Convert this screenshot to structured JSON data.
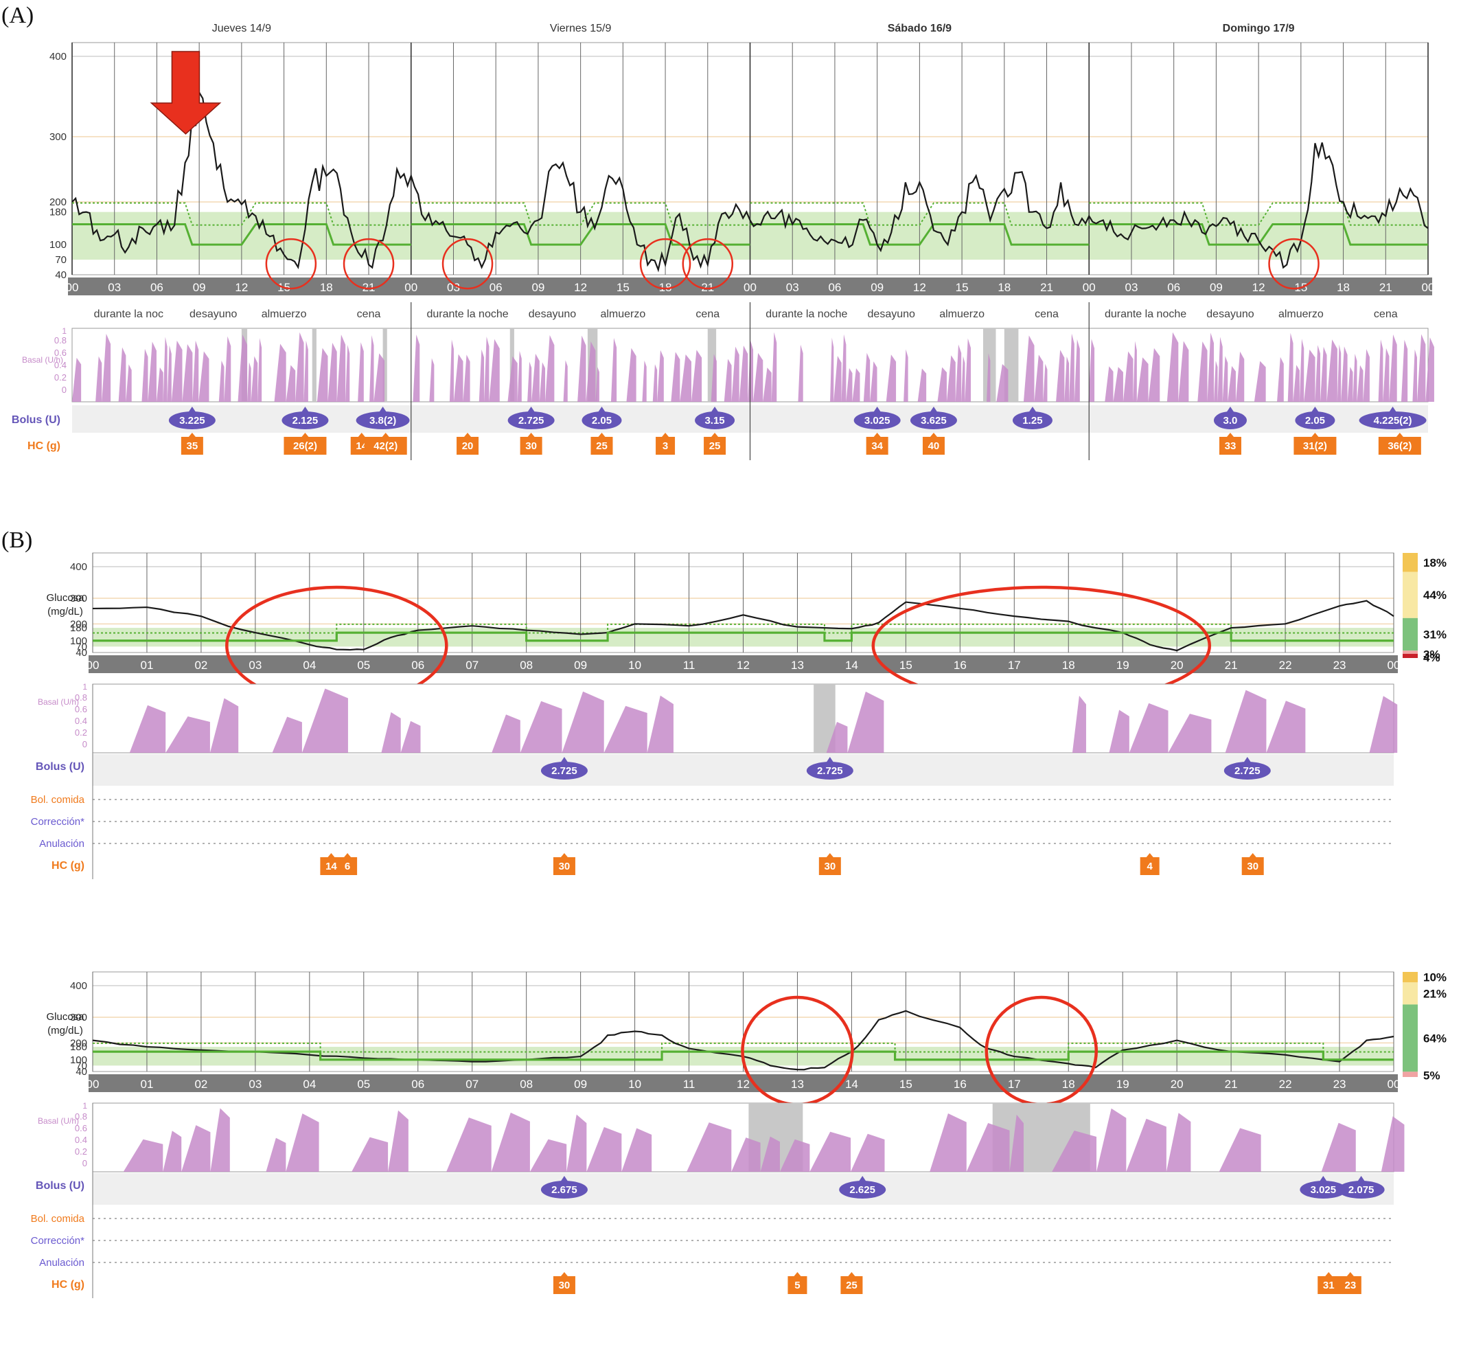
{
  "panel_labels": {
    "a": "(A)",
    "b": "(B)"
  },
  "colors": {
    "glucose": "#1a1a1a",
    "target_band": "#d6ecc6",
    "basal_line": "#55b033",
    "basal_fill": "#c68bc9",
    "bolus": "#6455b8",
    "carbs": "#f07a1c",
    "annotation": "#e8301e",
    "axis_bar": "#7b7b7b",
    "gap": "#c8c8c8",
    "pct_high": "#f3c553",
    "pct_elev": "#f8e8a4",
    "pct_target": "#7cc27c",
    "pct_low": "#f0a3a3",
    "pct_vlow": "#c8202a"
  },
  "chart_data": [
    {
      "type": "line",
      "id": "A",
      "days": [
        "Jueves 14/9",
        "Viernes 15/9",
        "Sábado 16/9",
        "Domingo 17/9"
      ],
      "x_tick_labels": [
        "00",
        "03",
        "06",
        "09",
        "12",
        "15",
        "18",
        "21"
      ],
      "y_ticks": [
        40,
        70,
        100,
        180,
        200,
        300,
        400
      ],
      "ylim": [
        40,
        400
      ],
      "target_range": [
        70,
        180
      ],
      "periods": [
        "durante la noc",
        "desayuno",
        "almuerzo",
        "cena",
        "durante la noche",
        "desayuno",
        "almuerzo",
        "cena",
        "durante la noche",
        "desayuno",
        "almuerzo",
        "cena",
        "durante la noche",
        "desayuno",
        "almuerzo",
        "cena"
      ],
      "period_hours": [
        0,
        8,
        12,
        18,
        0,
        8,
        12,
        18,
        0,
        8,
        12,
        18,
        0,
        8,
        12,
        18
      ],
      "row_labels": {
        "basal": "Basal (U/h)",
        "bolus": "Bolus (U)",
        "carbs": "HC (g)"
      },
      "basal_ticks": [
        "1",
        "0.8",
        "0.6",
        "0.4",
        "0.2",
        "0"
      ],
      "glucose": {
        "x_hours": [
          0,
          1,
          2,
          3,
          4,
          5,
          6,
          7,
          8,
          9,
          10,
          11,
          12,
          13,
          14,
          15,
          16,
          17,
          18,
          19,
          20,
          21,
          22,
          23,
          24,
          25,
          26,
          27,
          28,
          29,
          30,
          31,
          32,
          33,
          34,
          35,
          36,
          37,
          38,
          39,
          40,
          41,
          42,
          43,
          44,
          45,
          46,
          47,
          48,
          49,
          50,
          51,
          52,
          53,
          54,
          55,
          56,
          57,
          58,
          59,
          60,
          61,
          62,
          63,
          64,
          65,
          66,
          67,
          68,
          69,
          70,
          71,
          72,
          73,
          74,
          75,
          76,
          77,
          78,
          79,
          80,
          81,
          82,
          83,
          84,
          85,
          86,
          87,
          88,
          89,
          90,
          91,
          92,
          93,
          94,
          95,
          96
        ],
        "values": [
          200,
          180,
          110,
          125,
          95,
          140,
          150,
          135,
          260,
          355,
          290,
          200,
          195,
          170,
          120,
          80,
          55,
          230,
          240,
          220,
          100,
          60,
          110,
          250,
          240,
          160,
          150,
          120,
          100,
          55,
          130,
          145,
          130,
          160,
          255,
          240,
          180,
          140,
          240,
          220,
          100,
          70,
          60,
          175,
          70,
          60,
          175,
          195,
          160,
          170,
          175,
          150,
          140,
          120,
          110,
          95,
          160,
          100,
          130,
          230,
          230,
          135,
          100,
          180,
          240,
          160,
          220,
          245,
          180,
          140,
          230,
          150,
          170,
          160,
          120,
          130,
          140,
          150,
          160,
          160,
          130,
          145,
          150,
          120,
          110,
          90,
          60,
          110,
          290,
          270,
          200,
          170,
          170,
          170,
          220,
          210,
          140
        ]
      },
      "basal_target": {
        "x_hours": [
          0,
          8,
          8.5,
          12,
          13,
          18,
          18.5,
          24
        ],
        "values": [
          150,
          150,
          100,
          100,
          150,
          150,
          100,
          100
        ]
      },
      "hypo_circles_hours": [
        15.5,
        21,
        28,
        42,
        45,
        86.5
      ],
      "arrow_hour": 9.5,
      "bolus": [
        {
          "hour": 8.5,
          "label": "3.225"
        },
        {
          "hour": 16.5,
          "label": "2.125"
        },
        {
          "hour": 22,
          "label": "3.8(2)"
        },
        {
          "hour": 32.5,
          "label": "2.725"
        },
        {
          "hour": 37.5,
          "label": "2.05"
        },
        {
          "hour": 45.5,
          "label": "3.15"
        },
        {
          "hour": 57,
          "label": "3.025"
        },
        {
          "hour": 61,
          "label": "3.625"
        },
        {
          "hour": 68,
          "label": "1.25"
        },
        {
          "hour": 82,
          "label": "3.0"
        },
        {
          "hour": 88,
          "label": "2.05"
        },
        {
          "hour": 93.5,
          "label": "4.225(2)"
        }
      ],
      "carbs": [
        {
          "hour": 8.5,
          "label": "35"
        },
        {
          "hour": 16.5,
          "label": "26(2)"
        },
        {
          "hour": 20.5,
          "label": "14"
        },
        {
          "hour": 22.2,
          "label": "42(2)"
        },
        {
          "hour": 28,
          "label": "20"
        },
        {
          "hour": 32.5,
          "label": "30"
        },
        {
          "hour": 37.5,
          "label": "25"
        },
        {
          "hour": 42,
          "label": "3"
        },
        {
          "hour": 45.5,
          "label": "25"
        },
        {
          "hour": 57,
          "label": "34"
        },
        {
          "hour": 61,
          "label": "40"
        },
        {
          "hour": 82,
          "label": "33"
        },
        {
          "hour": 88,
          "label": "31(2)"
        },
        {
          "hour": 94,
          "label": "36(2)"
        }
      ]
    },
    {
      "type": "line",
      "id": "B1",
      "ylabel": "Glucosa\n(mg/dL)",
      "y_ticks": [
        40,
        70,
        100,
        180,
        200,
        300,
        400
      ],
      "ylim": [
        40,
        400
      ],
      "target_range": [
        70,
        180
      ],
      "x_tick_labels": [
        "00",
        "01",
        "02",
        "03",
        "04",
        "05",
        "06",
        "07",
        "08",
        "09",
        "10",
        "11",
        "12",
        "13",
        "14",
        "15",
        "16",
        "17",
        "18",
        "19",
        "20",
        "21",
        "22",
        "23",
        "00"
      ],
      "glucose": {
        "x_hours": [
          0,
          1,
          2,
          3,
          4,
          4.5,
          5,
          5.5,
          6,
          7,
          8,
          9,
          9.5,
          10,
          11,
          12,
          13,
          14,
          14.5,
          15,
          16,
          17,
          18,
          19,
          19.5,
          20,
          21,
          22,
          23,
          23.5,
          24
        ],
        "values": [
          260,
          265,
          230,
          150,
          80,
          55,
          55,
          120,
          165,
          190,
          165,
          140,
          150,
          200,
          190,
          235,
          185,
          175,
          205,
          285,
          260,
          230,
          210,
          150,
          80,
          50,
          180,
          200,
          270,
          290,
          230
        ]
      },
      "basal_target": {
        "x_hours": [
          0,
          4.5,
          4.5,
          8,
          8,
          9.5,
          9.5,
          13.5,
          13.5,
          14,
          14,
          21,
          21,
          24
        ],
        "values": [
          100,
          100,
          150,
          150,
          100,
          100,
          150,
          150,
          100,
          100,
          150,
          150,
          100,
          100
        ]
      },
      "ellipses": [
        {
          "cx_hour": 4.5,
          "label": ""
        },
        {
          "cx_hour": 17.5,
          "label": ""
        }
      ],
      "pct": [
        {
          "label": "18%"
        },
        {
          "label": "44%"
        },
        {
          "label": "31%"
        },
        {
          "label": "3%"
        },
        {
          "label": "4%"
        }
      ],
      "pct_values": [
        18,
        44,
        31,
        3,
        4
      ],
      "row_labels": {
        "basal": "Basal (U/h)",
        "bolus": "Bolus (U)",
        "bol_comida": "Bol. comida",
        "correccion": "Corrección*",
        "anulacion": "Anulación",
        "carbs": "HC (g)"
      },
      "basal_ticks": [
        "1",
        "0.8",
        "0.6",
        "0.4",
        "0.2",
        "0"
      ],
      "bolus": [
        {
          "hour": 8.7,
          "label": "2.725"
        },
        {
          "hour": 13.6,
          "label": "2.725"
        },
        {
          "hour": 21.3,
          "label": "2.725"
        }
      ],
      "carbs": [
        {
          "hour": 4.4,
          "label": "14"
        },
        {
          "hour": 4.7,
          "label": "6"
        },
        {
          "hour": 8.7,
          "label": "30"
        },
        {
          "hour": 13.6,
          "label": "30"
        },
        {
          "hour": 19.5,
          "label": "4"
        },
        {
          "hour": 21.4,
          "label": "30"
        }
      ],
      "gaps": [
        [
          13.3,
          13.7
        ]
      ]
    },
    {
      "type": "line",
      "id": "B2",
      "ylabel": "Glucosa\n(mg/dL)",
      "y_ticks": [
        40,
        70,
        100,
        180,
        200,
        300,
        400
      ],
      "ylim": [
        40,
        400
      ],
      "target_range": [
        70,
        180
      ],
      "x_tick_labels": [
        "00",
        "01",
        "02",
        "03",
        "04",
        "05",
        "06",
        "07",
        "08",
        "09",
        "10",
        "11",
        "12",
        "13",
        "14",
        "15",
        "16",
        "17",
        "18",
        "19",
        "20",
        "21",
        "22",
        "23",
        "00"
      ],
      "glucose": {
        "x_hours": [
          0,
          1,
          2,
          3,
          4,
          5,
          6,
          7,
          8,
          9,
          9.5,
          10,
          10.5,
          11,
          12,
          12.5,
          13,
          13.5,
          14,
          14.5,
          15,
          16,
          16.5,
          17,
          18,
          18.5,
          19,
          20,
          21,
          22,
          23,
          23.5,
          24
        ],
        "values": [
          210,
          180,
          160,
          150,
          130,
          110,
          100,
          90,
          100,
          120,
          230,
          245,
          230,
          170,
          120,
          70,
          50,
          60,
          150,
          290,
          320,
          260,
          170,
          120,
          80,
          60,
          160,
          210,
          150,
          130,
          90,
          210,
          225
        ]
      },
      "basal_target": {
        "x_hours": [
          0,
          4.2,
          4.2,
          8.5,
          8.5,
          10.5,
          10.5,
          14.8,
          14.8,
          18,
          18,
          22.7,
          22.7,
          24
        ],
        "values": [
          150,
          150,
          100,
          100,
          100,
          100,
          150,
          150,
          100,
          100,
          150,
          150,
          100,
          100
        ]
      },
      "ellipses": [
        {
          "cx_hour": 13,
          "label": ""
        },
        {
          "cx_hour": 17.5,
          "label": ""
        }
      ],
      "pct": [
        {
          "label": "10%"
        },
        {
          "label": "21%"
        },
        {
          "label": "64%"
        },
        {
          "label": "5%"
        }
      ],
      "pct_values": [
        10,
        21,
        64,
        5
      ],
      "row_labels": {
        "basal": "Basal (U/h)",
        "bolus": "Bolus (U)",
        "bol_comida": "Bol. comida",
        "correccion": "Corrección*",
        "anulacion": "Anulación",
        "carbs": "HC (g)"
      },
      "basal_ticks": [
        "1",
        "0.8",
        "0.6",
        "0.4",
        "0.2",
        "0"
      ],
      "bolus": [
        {
          "hour": 8.7,
          "label": "2.675"
        },
        {
          "hour": 14.2,
          "label": "2.625"
        },
        {
          "hour": 22.7,
          "label": "3.025"
        },
        {
          "hour": 23.4,
          "label": "2.075"
        }
      ],
      "carbs": [
        {
          "hour": 8.7,
          "label": "30"
        },
        {
          "hour": 13,
          "label": "5"
        },
        {
          "hour": 14,
          "label": "25"
        },
        {
          "hour": 22.8,
          "label": "31"
        },
        {
          "hour": 23.2,
          "label": "23"
        }
      ],
      "gaps": [
        [
          12.1,
          13.1
        ],
        [
          16.6,
          18.4
        ]
      ]
    }
  ]
}
